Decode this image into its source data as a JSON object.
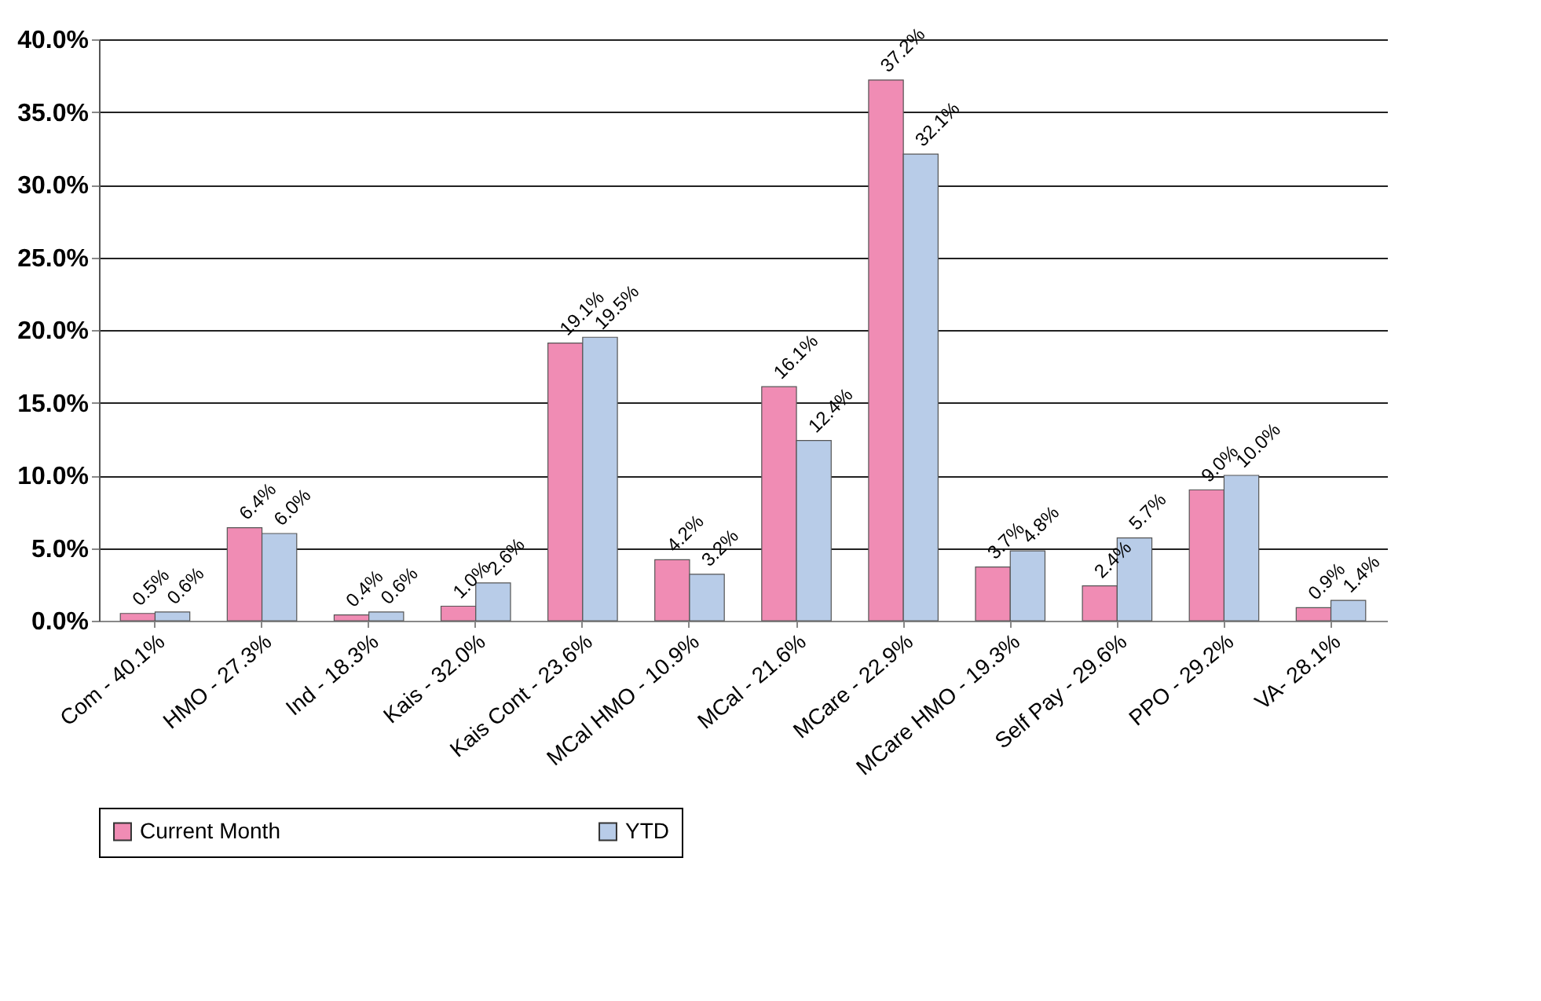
{
  "chart_data": {
    "type": "bar",
    "categories": [
      "Com - 40.1%",
      "HMO - 27.3%",
      "Ind - 18.3%",
      "Kais - 32.0%",
      "Kais Cont - 23.6%",
      "MCal HMO - 10.9%",
      "MCal - 21.6%",
      "MCare - 22.9%",
      "MCare HMO - 19.3%",
      "Self Pay - 29.6%",
      "PPO - 29.2%",
      "VA- 28.1%"
    ],
    "series": [
      {
        "name": "Current Month",
        "color": "#f08cb4",
        "values": [
          0.5,
          6.4,
          0.4,
          1.0,
          19.1,
          4.2,
          16.1,
          37.2,
          3.7,
          2.4,
          9.0,
          0.9
        ],
        "value_labels": [
          "0.5%",
          "6.4%",
          "0.4%",
          "1.0%",
          "19.1%",
          "4.2%",
          "16.1%",
          "37.2%",
          "3.7%",
          "2.4%",
          "9.0%",
          "0.9%"
        ]
      },
      {
        "name": "YTD",
        "color": "#b8cce8",
        "values": [
          0.6,
          6.0,
          0.6,
          2.6,
          19.5,
          3.2,
          12.4,
          32.1,
          4.8,
          5.7,
          10.0,
          1.4
        ],
        "value_labels": [
          "0.6%",
          "6.0%",
          "0.6%",
          "2.6%",
          "19.5%",
          "3.2%",
          "12.4%",
          "32.1%",
          "4.8%",
          "5.7%",
          "10.0%",
          "1.4%"
        ]
      }
    ],
    "ylim": [
      0,
      40
    ],
    "yticks": [
      {
        "value": 0,
        "label": "0.0%"
      },
      {
        "value": 5,
        "label": "5.0%"
      },
      {
        "value": 10,
        "label": "10.0%"
      },
      {
        "value": 15,
        "label": "15.0%"
      },
      {
        "value": 20,
        "label": "20.0%"
      },
      {
        "value": 25,
        "label": "25.0%"
      },
      {
        "value": 30,
        "label": "30.0%"
      },
      {
        "value": 35,
        "label": "35.0%"
      },
      {
        "value": 40,
        "label": "40.0%"
      }
    ],
    "grid": "y",
    "legend": "bottom"
  }
}
